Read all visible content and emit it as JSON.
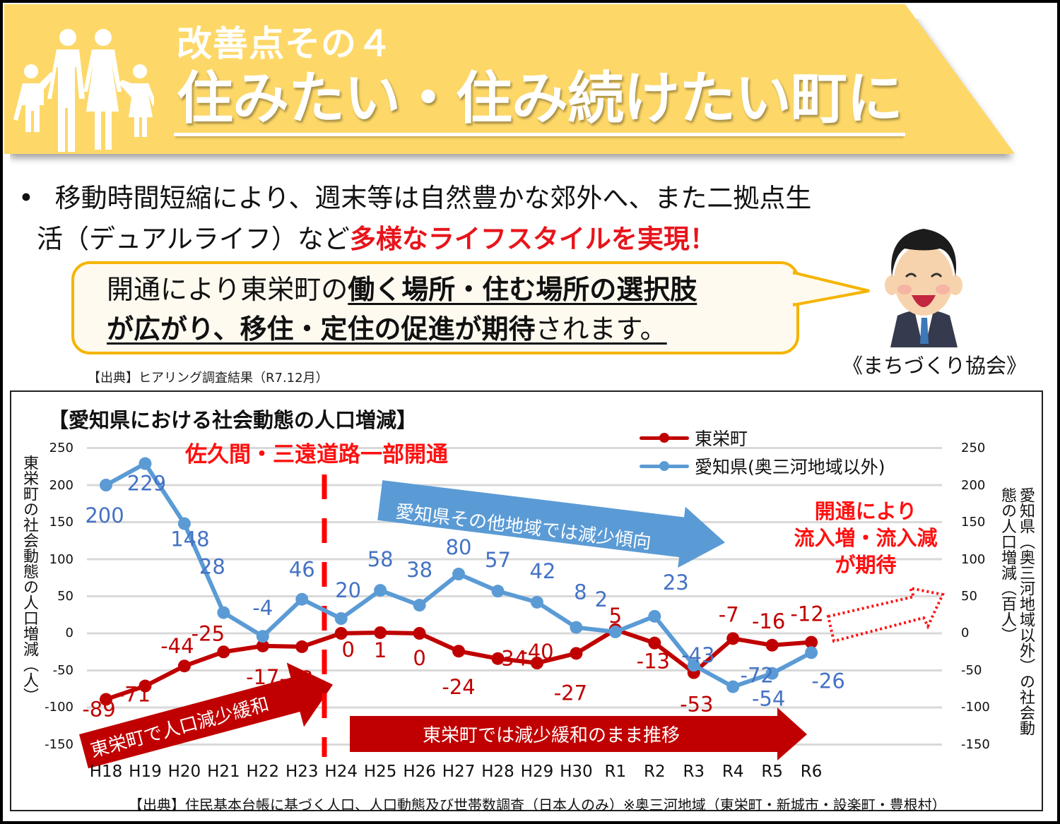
{
  "header": {
    "subtitle": "改善点その４",
    "title": "住みたい・住み続けたい町に",
    "icon": "family-icon",
    "banner_color": "#fdd868"
  },
  "bullet": {
    "marker": "•",
    "text_plain_1": "移動時間短縮により、週末等は自然豊かな郊外へ、また二拠点生",
    "text_plain_2": "活（デュアルライフ）など",
    "text_red": "多様なライフスタイルを実現！"
  },
  "speech_bubble": {
    "line1_plain": "開通により東栄町の",
    "line1_bold": "働く場所・住む場所の選択肢",
    "line2_bold": "が広がり、移住・定住の促進が期待",
    "line2_plain": "されます。",
    "speaker": "《まちづくり協会》",
    "speaker_icon": "businessman-avatar-icon"
  },
  "source_hearing": "【出典】ヒアリング調査結果（R7.12月）",
  "chart_panel": {
    "title": "【愛知県における社会動態の人口増減】",
    "opening_annotation": "佐久間・三遠道路一部開通",
    "blue_arrow_text": "愛知県その他地域では減少傾向",
    "red_arrow1_text": "東栄町で人口減少緩和",
    "red_arrow2_text": "東栄町では減少緩和のまま推移",
    "expectation_line1": "開通により",
    "expectation_line2": "流入増・流入減",
    "expectation_line3": "が期待",
    "left_axis_title": "東栄町の社会動態の人口増減（人）",
    "right_axis_title_1": "愛知県（奥三河地域以外）の",
    "right_axis_title_2": "社会動態の人口増減（百人）",
    "source": "【出典】住民基本台帳に基づく人口、人口動態及び世帯数調査（日本人のみ）※奥三河地域（東栄町・新城市・設楽町・豊根村）"
  },
  "chart_data": {
    "type": "line",
    "title": "【愛知県における社会動態の人口増減】",
    "categories": [
      "H18",
      "H19",
      "H20",
      "H21",
      "H22",
      "H23",
      "H24",
      "H25",
      "H26",
      "H27",
      "H28",
      "H29",
      "H30",
      "R1",
      "R2",
      "R3",
      "R4",
      "R5",
      "R6"
    ],
    "series": [
      {
        "name": "東栄町",
        "axis": "left",
        "unit": "人",
        "color": "#c00000",
        "values": [
          -89,
          -71,
          -44,
          -25,
          -17,
          -18,
          0,
          1,
          0,
          -24,
          -34,
          -40,
          -27,
          5,
          -13,
          -53,
          -7,
          -16,
          -12
        ]
      },
      {
        "name": "愛知県(奥三河地域以外)",
        "axis": "right",
        "unit": "百人",
        "color": "#5b9bd5",
        "values": [
          200,
          229,
          148,
          28,
          -4,
          46,
          20,
          58,
          38,
          80,
          57,
          42,
          8,
          2,
          23,
          -43,
          -72,
          -54,
          -26
        ]
      }
    ],
    "ylabel_left": "東栄町の社会動態の人口増減（人）",
    "ylabel_right": "愛知県（奥三河地域以外）の社会動態の人口増減（百人）",
    "yticks": [
      250,
      200,
      150,
      100,
      50,
      0,
      -50,
      -100,
      -150
    ],
    "ylim": [
      -150,
      250
    ],
    "grid": true,
    "legend_position": "top-right",
    "vertical_marker": {
      "between": [
        "H23",
        "H24"
      ],
      "label": "佐久間・三遠道路一部開通",
      "style": "dashed",
      "color": "#ff0000"
    }
  }
}
